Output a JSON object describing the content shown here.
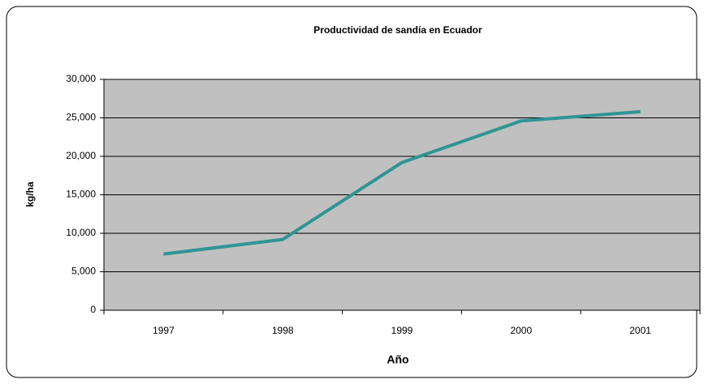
{
  "chart_data": {
    "type": "line",
    "title": "Productividad de sandía en Ecuador",
    "x_label": "Año",
    "y_label": "kg/ha",
    "categories": [
      "1997",
      "1998",
      "1999",
      "2000",
      "2001"
    ],
    "series": [
      {
        "name": "kg/ha",
        "color": "#2f9494",
        "values": [
          7300,
          9200,
          19200,
          24600,
          25800
        ]
      }
    ],
    "ylim": [
      0,
      30000
    ],
    "yticks": [
      0,
      {
        "value": 5000,
        "label": "5,000"
      },
      {
        "value": 10000,
        "label": "10,000"
      },
      {
        "value": 15000,
        "label": "15,000"
      },
      {
        "value": 20000,
        "label": "20,000"
      },
      {
        "value": 25000,
        "label": "25,000"
      },
      {
        "value": 30000,
        "label": "30,000"
      }
    ],
    "grid": true,
    "background": "#c0c0c0"
  }
}
